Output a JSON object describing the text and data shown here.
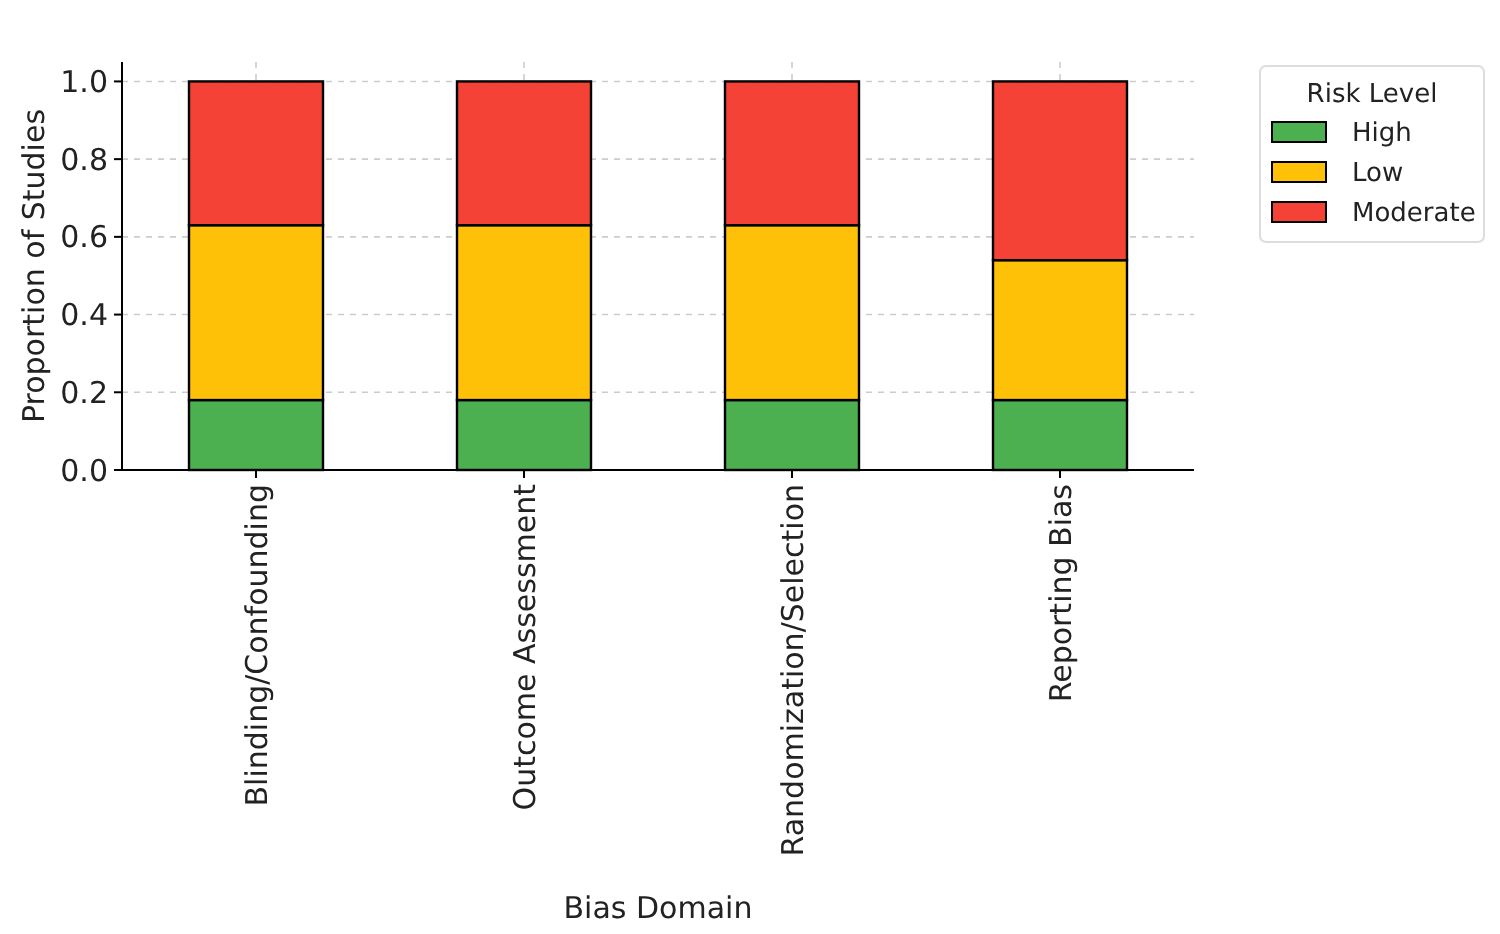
{
  "chart_data": {
    "type": "bar",
    "stacked": true,
    "xlabel": "Bias Domain",
    "ylabel": "Proportion of Studies",
    "legend_title": "Risk Level",
    "legend": "top right",
    "grid": true,
    "categories": [
      "Blinding/Confounding",
      "Outcome Assessment",
      "Randomization/Selection",
      "Reporting Bias"
    ],
    "series": [
      {
        "name": "High",
        "color": "#4caf50",
        "values": [
          0.18,
          0.18,
          0.18,
          0.18
        ]
      },
      {
        "name": "Low",
        "color": "#ffc107",
        "values": [
          0.45,
          0.45,
          0.45,
          0.36
        ]
      },
      {
        "name": "Moderate",
        "color": "#f44336",
        "values": [
          0.37,
          0.37,
          0.37,
          0.46
        ]
      }
    ],
    "ylim": [
      0,
      1.05
    ],
    "yticks": [
      {
        "value": 0,
        "label": "0.0"
      },
      {
        "value": 0.2,
        "label": "0.2"
      },
      {
        "value": 0.4,
        "label": "0.4"
      },
      {
        "value": 0.6,
        "label": "0.6"
      },
      {
        "value": 0.8,
        "label": "0.8"
      },
      {
        "value": 1,
        "label": "1.0"
      }
    ]
  }
}
